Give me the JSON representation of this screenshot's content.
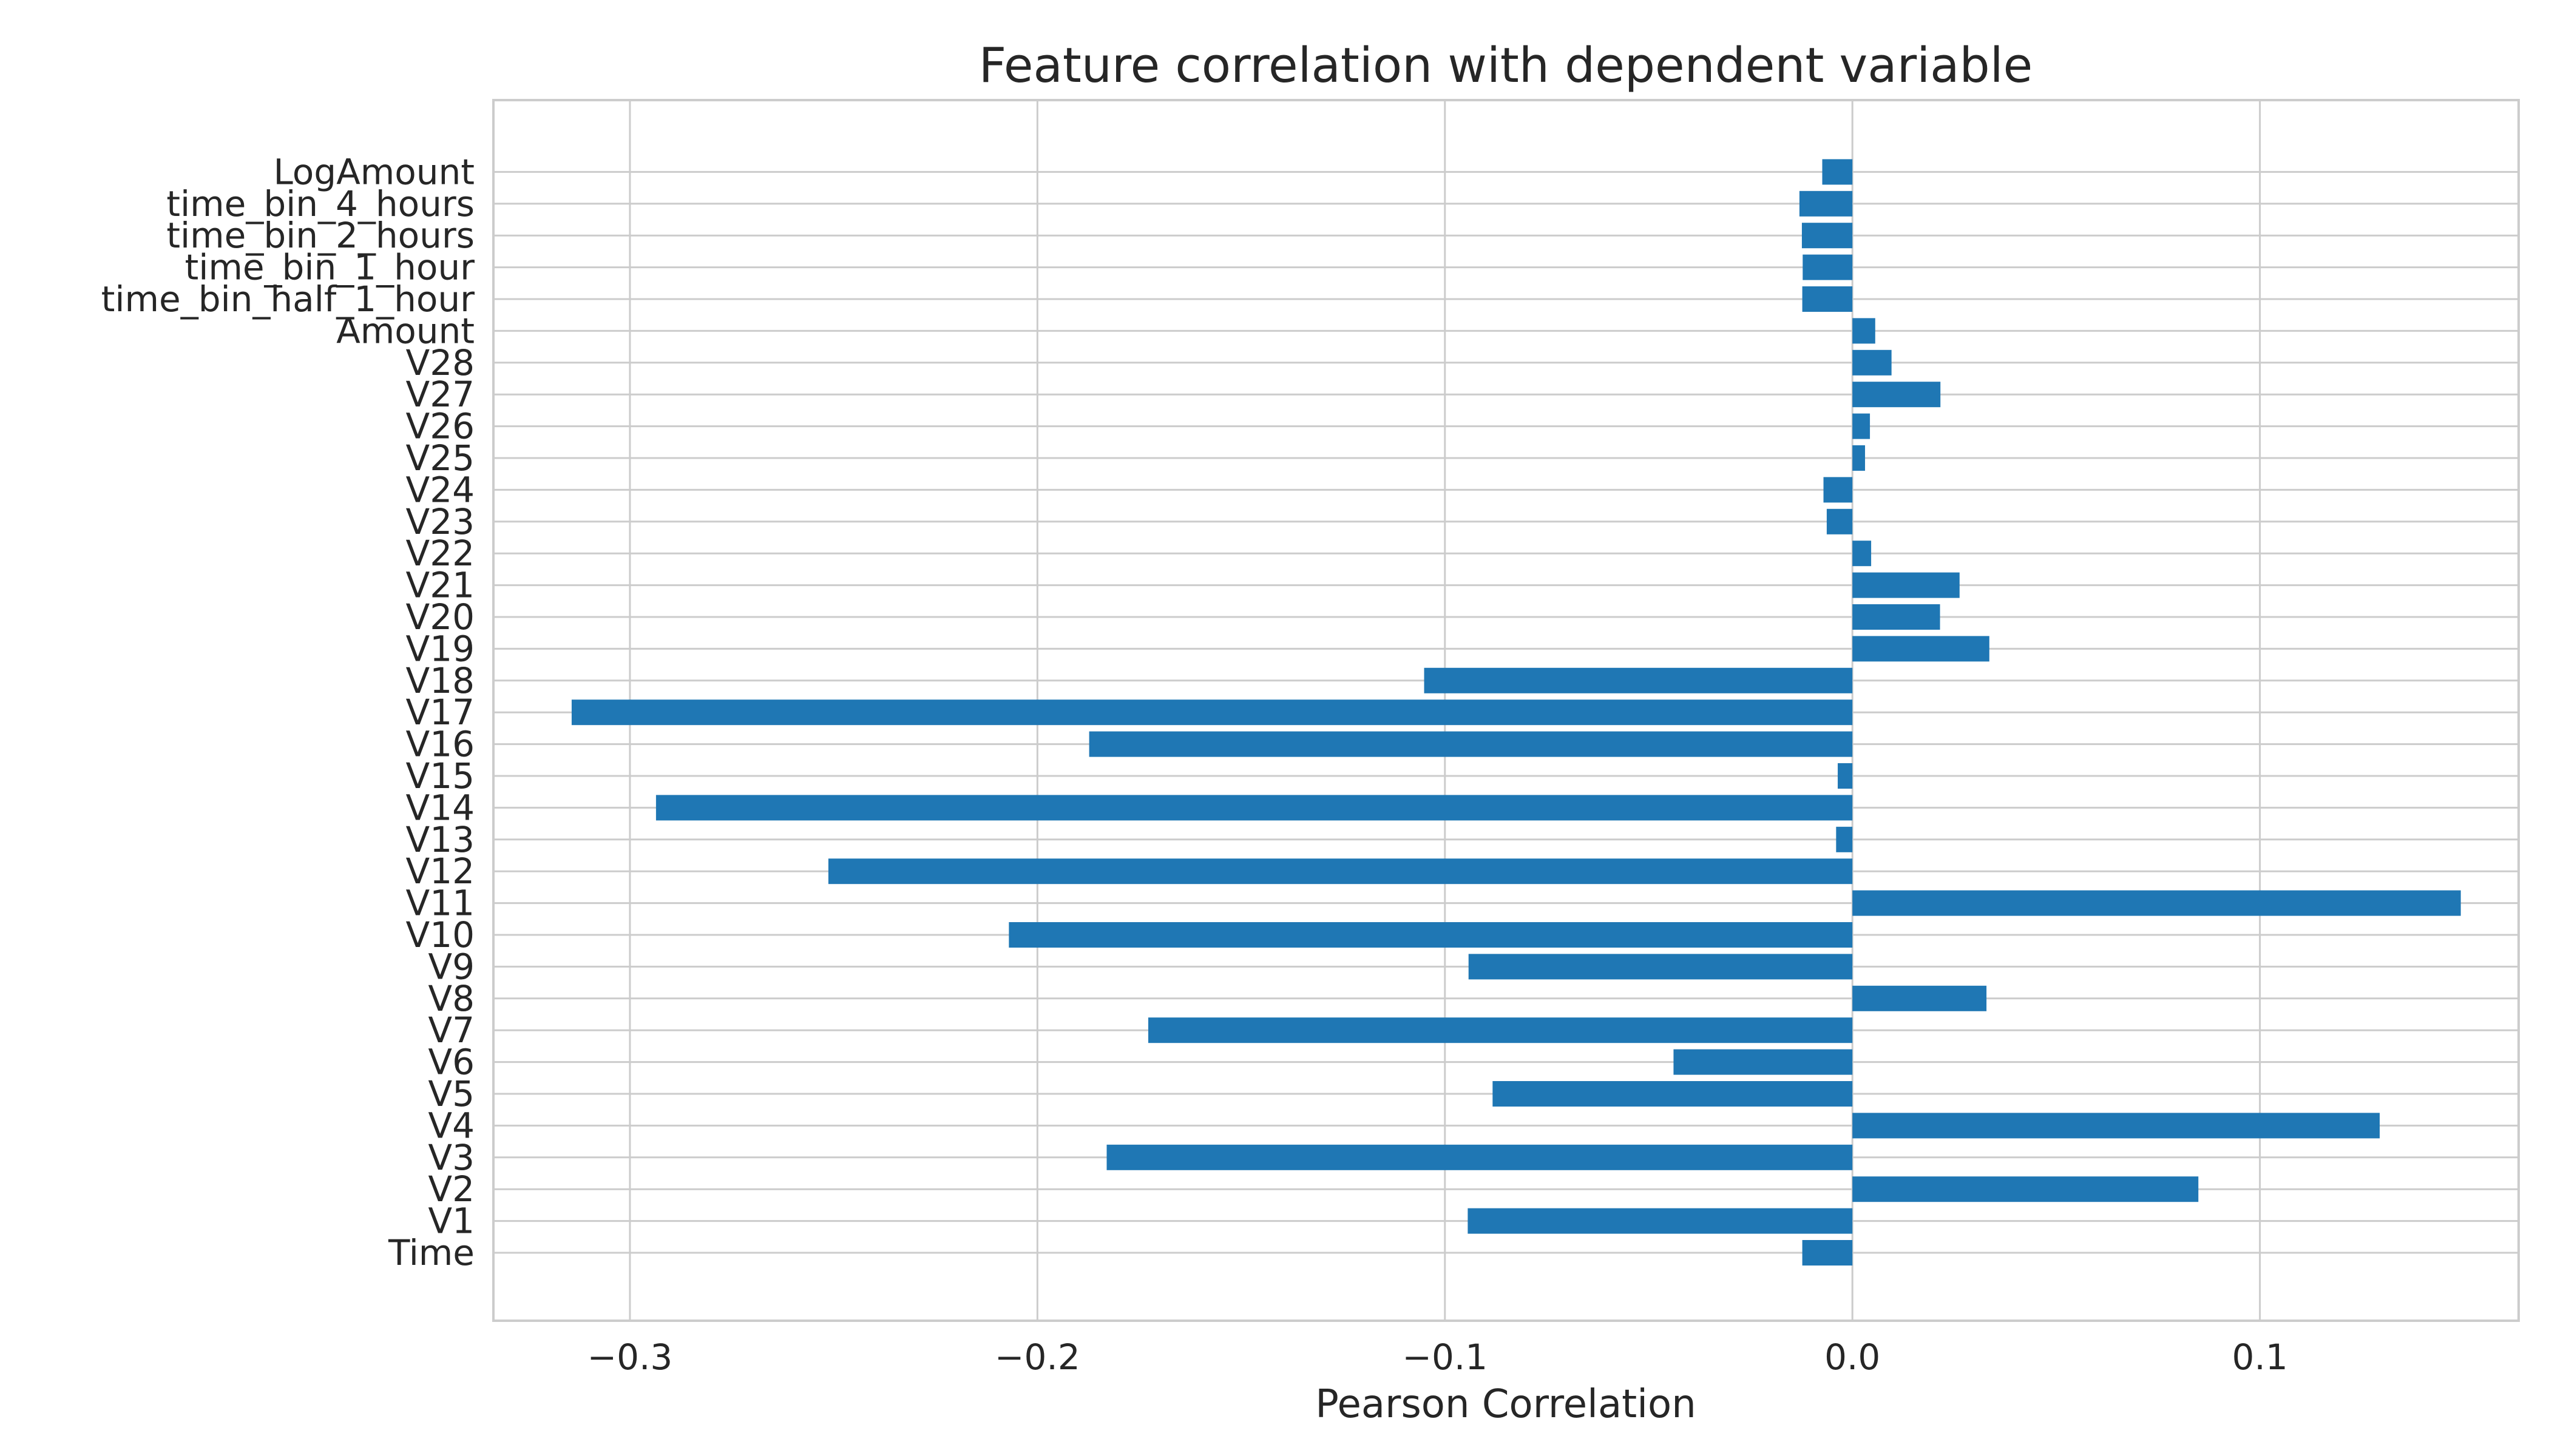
{
  "chart_data": {
    "type": "bar",
    "orientation": "horizontal",
    "title": "Feature correlation with dependent variable",
    "xlabel": "Pearson Correlation",
    "ylabel": "",
    "xlim": [
      -0.3335,
      0.1635
    ],
    "xticks": [
      -0.3,
      -0.2,
      -0.1,
      0.0,
      0.1
    ],
    "xtick_labels": [
      "−0.3",
      "−0.2",
      "−0.1",
      "0.0",
      "0.1"
    ],
    "grid": true,
    "bar_color": "#1f77b4",
    "categories": [
      "Time",
      "V1",
      "V2",
      "V3",
      "V4",
      "V5",
      "V6",
      "V7",
      "V8",
      "V9",
      "V10",
      "V11",
      "V12",
      "V13",
      "V14",
      "V15",
      "V16",
      "V17",
      "V18",
      "V19",
      "V20",
      "V21",
      "V22",
      "V23",
      "V24",
      "V25",
      "V26",
      "V27",
      "V28",
      "Amount",
      "time_bin_half_1_hour",
      "time_bin_1_hour",
      "time_bin_2_hours",
      "time_bin_4_hours",
      "LogAmount"
    ],
    "values": [
      -0.0123,
      -0.0944,
      0.0849,
      -0.183,
      0.1294,
      -0.0883,
      -0.0439,
      -0.1728,
      0.0329,
      -0.0942,
      -0.207,
      0.1493,
      -0.2513,
      -0.004,
      -0.2936,
      -0.0036,
      -0.1873,
      -0.3143,
      -0.1051,
      0.0336,
      0.0215,
      0.0263,
      0.0046,
      -0.0063,
      -0.0071,
      0.0031,
      0.0043,
      0.0216,
      0.0096,
      0.0056,
      -0.0123,
      -0.0122,
      -0.0124,
      -0.013,
      -0.0074
    ]
  }
}
